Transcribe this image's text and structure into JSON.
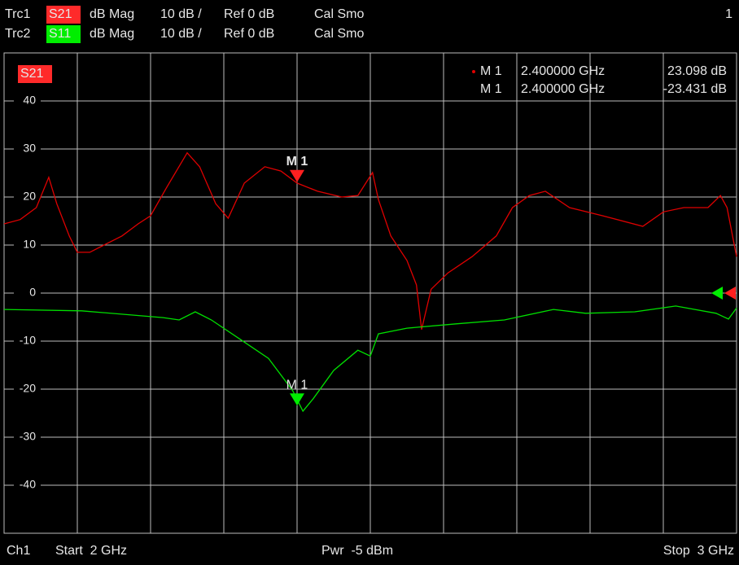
{
  "chart_data": {
    "type": "line",
    "traces": [
      {
        "name": "Trc1",
        "param": "S21",
        "format": "dB Mag",
        "scale": "10 dB /",
        "ref": "Ref 0 dB",
        "cal": "Cal Smo"
      },
      {
        "name": "Trc2",
        "param": "S11",
        "format": "dB Mag",
        "scale": "10 dB /",
        "ref": "Ref 0 dB",
        "cal": "Cal Smo"
      }
    ],
    "window": "1",
    "footer": {
      "channel": "Ch1",
      "start": "Start  2 GHz",
      "power": "Pwr  -5 dBm",
      "stop": "Stop  3 GHz"
    },
    "xlim": [
      2,
      3
    ],
    "ylim": [
      -50,
      50
    ],
    "yticks": [
      40,
      30,
      20,
      10,
      0,
      -10,
      -20,
      -30,
      -40
    ],
    "ref_level": 0,
    "grid": true,
    "series": [
      {
        "name": "S21",
        "color": "#e00000",
        "x": [
          2.0,
          2.022,
          2.044,
          2.061,
          2.072,
          2.089,
          2.1,
          2.117,
          2.139,
          2.161,
          2.183,
          2.2,
          2.222,
          2.25,
          2.267,
          2.289,
          2.306,
          2.328,
          2.356,
          2.378,
          2.4,
          2.428,
          2.461,
          2.483,
          2.503,
          2.511,
          2.528,
          2.55,
          2.563,
          2.57,
          2.583,
          2.606,
          2.639,
          2.672,
          2.694,
          2.717,
          2.739,
          2.772,
          2.817,
          2.872,
          2.9,
          2.928,
          2.961,
          2.978,
          2.987,
          3.0
        ],
        "values": [
          14.4,
          15.3,
          17.8,
          24.1,
          18.6,
          11.9,
          8.5,
          8.5,
          10.2,
          11.9,
          14.4,
          16.1,
          22,
          29.2,
          26.3,
          18.6,
          15.6,
          22.9,
          26.3,
          25.4,
          22.9,
          21.2,
          20,
          20.3,
          25.1,
          19.5,
          11.9,
          6.8,
          1.7,
          -7.6,
          0.8,
          4.2,
          7.6,
          11.9,
          17.8,
          20.3,
          21.2,
          17.8,
          16.1,
          13.9,
          16.9,
          17.8,
          17.8,
          20.3,
          17.8,
          7.6
        ],
        "marker": {
          "name": "M 1",
          "x": 2.4,
          "x_label": "2.400000 GHz",
          "value": 23.098,
          "value_label": "23.098 dB"
        }
      },
      {
        "name": "S11",
        "color": "#00e000",
        "x": [
          2.0,
          2.106,
          2.217,
          2.239,
          2.261,
          2.283,
          2.328,
          2.361,
          2.394,
          2.408,
          2.422,
          2.45,
          2.483,
          2.5,
          2.511,
          2.55,
          2.617,
          2.683,
          2.75,
          2.794,
          2.861,
          2.917,
          2.972,
          2.989,
          3.0
        ],
        "values": [
          -3.4,
          -3.7,
          -5.1,
          -5.6,
          -3.9,
          -5.6,
          -10.2,
          -13.6,
          -20.3,
          -24.6,
          -22,
          -16.1,
          -11.9,
          -13.1,
          -8.5,
          -7.3,
          -6.4,
          -5.6,
          -3.4,
          -4.2,
          -3.9,
          -2.7,
          -4.2,
          -5.4,
          -3.1
        ],
        "marker": {
          "name": "M 1",
          "x": 2.4,
          "x_label": "2.400000 GHz",
          "value": -23.431,
          "value_label": "-23.431 dB"
        }
      }
    ]
  }
}
